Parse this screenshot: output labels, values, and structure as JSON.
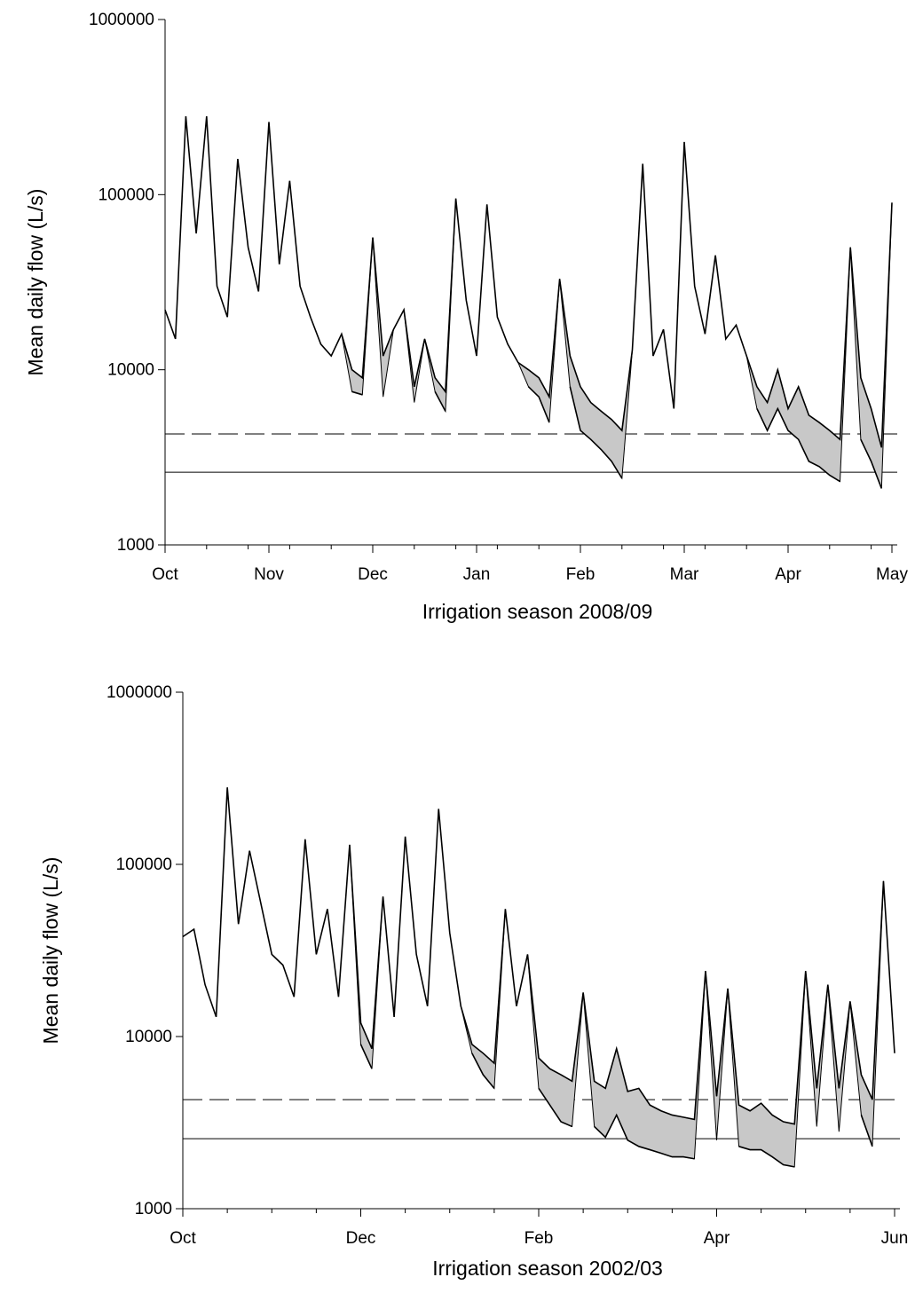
{
  "chart_data": [
    {
      "type": "line",
      "xlabel": "Irrigation season 2008/09",
      "ylabel": "Mean daily flow (L/s)",
      "log_y": true,
      "ylim": [
        1000,
        1000000
      ],
      "yticks": [
        1000,
        10000,
        100000,
        1000000
      ],
      "categories": [
        "Oct",
        null,
        null,
        null,
        null,
        null,
        null,
        null,
        null,
        null,
        "Nov",
        null,
        null,
        null,
        null,
        null,
        null,
        null,
        null,
        null,
        "Dec",
        null,
        null,
        null,
        null,
        null,
        null,
        null,
        null,
        null,
        "Jan",
        null,
        null,
        null,
        null,
        null,
        null,
        null,
        null,
        null,
        "Feb",
        null,
        null,
        null,
        null,
        null,
        null,
        null,
        null,
        null,
        "Mar",
        null,
        null,
        null,
        null,
        null,
        null,
        null,
        null,
        null,
        "Apr",
        null,
        null,
        null,
        null,
        null,
        null,
        null,
        null,
        null,
        "May"
      ],
      "series": [
        {
          "color": "#000000",
          "values": [
            22000,
            15000,
            280000,
            60000,
            280000,
            30000,
            20000,
            160000,
            50000,
            28000,
            260000,
            40000,
            120000,
            30000,
            20000,
            14000,
            12000,
            16000,
            10000,
            9000,
            57000,
            12000,
            17000,
            22000,
            8000,
            15000,
            9000,
            7500,
            95000,
            25000,
            12000,
            88000,
            20000,
            14000,
            11000,
            10000,
            9000,
            7000,
            33000,
            12000,
            8000,
            6500,
            5800,
            5200,
            4500,
            13000,
            150000,
            12000,
            17000,
            6000,
            200000,
            30000,
            16000,
            45000,
            15000,
            18000,
            12000,
            8000,
            6500,
            10000,
            6000,
            8000,
            5500,
            5000,
            4500,
            4000,
            50000,
            9000,
            6000,
            3600,
            90000
          ]
        },
        {
          "color": "#000000",
          "fill": "#c8c8c8",
          "values": [
            null,
            null,
            null,
            null,
            null,
            null,
            null,
            null,
            null,
            null,
            null,
            null,
            null,
            null,
            null,
            null,
            null,
            null,
            7500,
            7200,
            null,
            7000,
            null,
            null,
            6500,
            null,
            7500,
            5800,
            null,
            null,
            null,
            null,
            null,
            null,
            null,
            8000,
            7000,
            5000,
            null,
            8000,
            4500,
            4000,
            3500,
            3000,
            2400,
            null,
            null,
            null,
            null,
            null,
            null,
            null,
            null,
            null,
            null,
            null,
            null,
            6000,
            4500,
            6000,
            4500,
            4000,
            3000,
            2800,
            2500,
            2300,
            null,
            4000,
            3000,
            2100,
            null
          ]
        }
      ],
      "hlines": [
        {
          "value": 4300,
          "style": "dashed"
        },
        {
          "value": 2600,
          "style": "solid"
        }
      ]
    },
    {
      "type": "line",
      "xlabel": "Irrigation season 2002/03",
      "ylabel": "Mean daily flow (L/s)",
      "log_y": true,
      "ylim": [
        1000,
        1000000
      ],
      "yticks": [
        1000,
        10000,
        100000,
        1000000
      ],
      "categories": [
        "Oct",
        null,
        null,
        null,
        null,
        null,
        null,
        null,
        null,
        null,
        null,
        null,
        null,
        null,
        null,
        null,
        "Dec",
        null,
        null,
        null,
        null,
        null,
        null,
        null,
        null,
        null,
        null,
        null,
        null,
        null,
        null,
        null,
        "Feb",
        null,
        null,
        null,
        null,
        null,
        null,
        null,
        null,
        null,
        null,
        null,
        null,
        null,
        null,
        null,
        "Apr",
        null,
        null,
        null,
        null,
        null,
        null,
        null,
        null,
        null,
        null,
        null,
        null,
        null,
        null,
        null,
        "Jun"
      ],
      "series": [
        {
          "color": "#000000",
          "values": [
            38000,
            42000,
            20000,
            13000,
            280000,
            45000,
            120000,
            60000,
            30000,
            26000,
            17000,
            140000,
            30000,
            55000,
            17000,
            130000,
            12000,
            8500,
            65000,
            13000,
            145000,
            30000,
            15000,
            210000,
            40000,
            15000,
            9000,
            8000,
            7000,
            55000,
            15000,
            30000,
            7500,
            6500,
            6000,
            5500,
            18000,
            5500,
            5000,
            8500,
            4800,
            5000,
            4000,
            3700,
            3500,
            3400,
            3300,
            24000,
            4500,
            19000,
            4000,
            3700,
            4100,
            3500,
            3200,
            3100,
            24000,
            5000,
            20000,
            5000,
            16000,
            6000,
            4300,
            80000,
            8000
          ]
        },
        {
          "color": "#000000",
          "fill": "#c8c8c8",
          "values": [
            null,
            null,
            null,
            null,
            null,
            null,
            null,
            null,
            null,
            null,
            null,
            null,
            null,
            null,
            null,
            null,
            9000,
            6500,
            null,
            null,
            null,
            null,
            null,
            null,
            null,
            null,
            8000,
            6000,
            5000,
            null,
            null,
            null,
            5000,
            4000,
            3200,
            3000,
            null,
            3000,
            2600,
            3500,
            2500,
            2300,
            2200,
            2100,
            2000,
            2000,
            1950,
            null,
            2500,
            null,
            2300,
            2200,
            2200,
            2000,
            1800,
            1750,
            null,
            3000,
            null,
            2800,
            null,
            3500,
            2300,
            null,
            null
          ]
        }
      ],
      "hlines": [
        {
          "value": 4300,
          "style": "dashed"
        },
        {
          "value": 2550,
          "style": "solid"
        }
      ]
    }
  ]
}
